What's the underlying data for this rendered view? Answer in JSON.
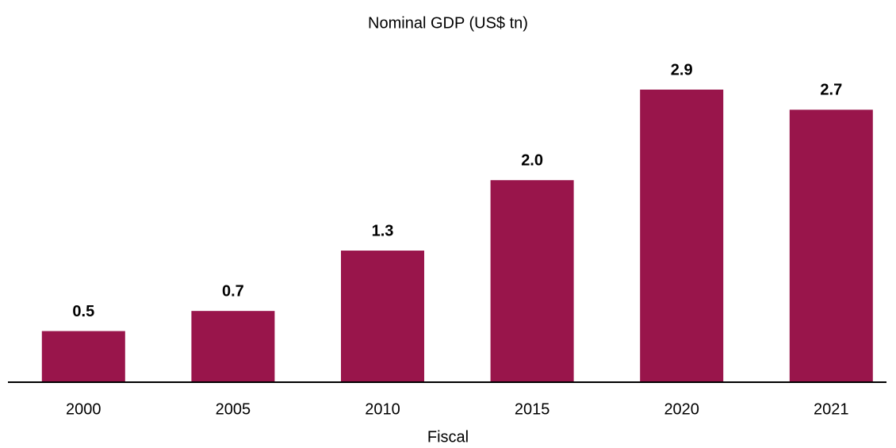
{
  "chart_data": {
    "type": "bar",
    "title": "Nominal GDP (US$ tn)",
    "x_label": "Fiscal",
    "categories": [
      "2000",
      "2005",
      "2010",
      "2015",
      "2020",
      "2021"
    ],
    "values": [
      0.5,
      0.7,
      1.3,
      2.0,
      2.9,
      2.7
    ],
    "value_labels": [
      "0.5",
      "0.7",
      "1.3",
      "2.0",
      "2.9",
      "2.7"
    ],
    "color": "#99154b"
  }
}
